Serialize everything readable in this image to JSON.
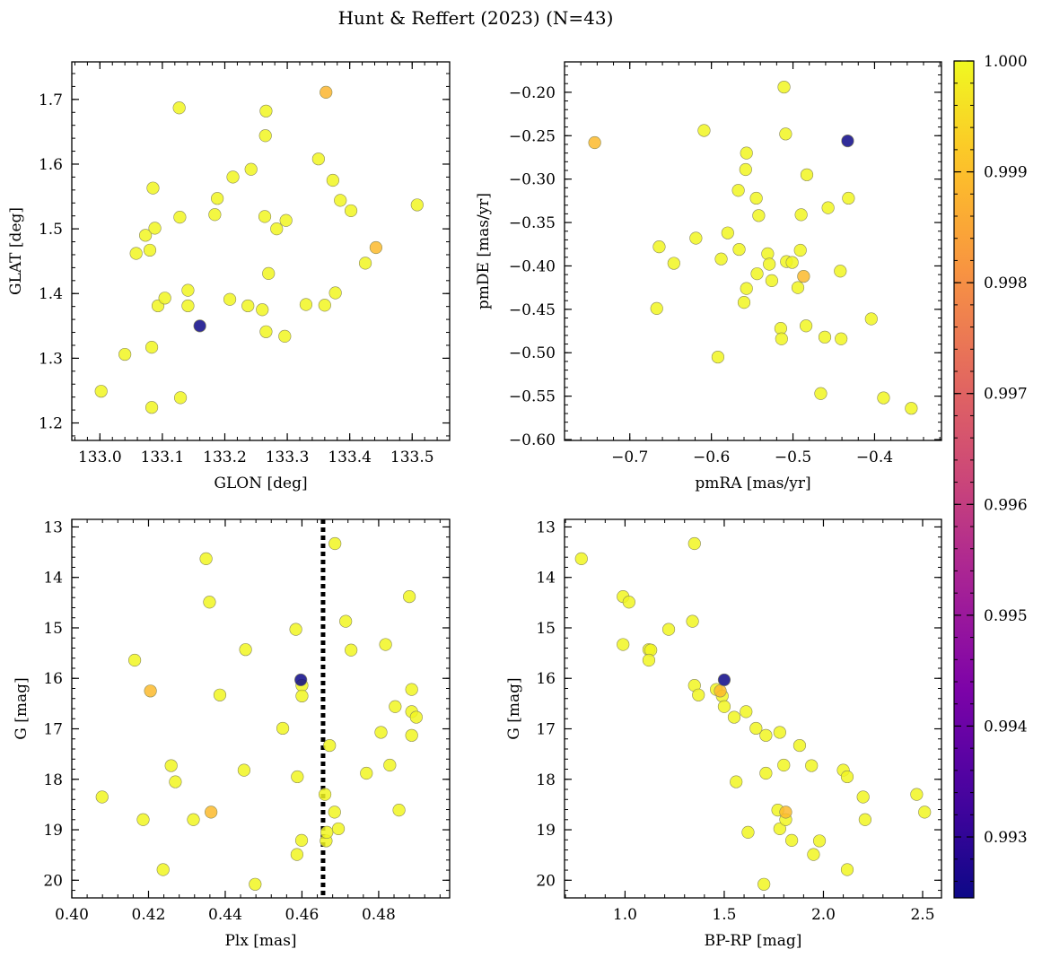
{
  "title": "Hunt & Reffert (2023) (N=43)",
  "colorbar": {
    "min": 0.99245,
    "max": 1.0,
    "ticks": [
      0.993,
      0.994,
      0.995,
      0.996,
      0.997,
      0.998,
      0.999,
      1.0
    ],
    "tick_labels": [
      "0.993",
      "0.994",
      "0.995",
      "0.996",
      "0.997",
      "0.998",
      "0.999",
      "1.000"
    ],
    "colormap": "plasma"
  },
  "chart_data": [
    {
      "type": "scatter",
      "id": "glon-glat",
      "xlabel": "GLON [deg]",
      "ylabel": "GLAT [deg]",
      "xlim": [
        132.955,
        133.56
      ],
      "ylim": [
        1.173,
        1.758
      ],
      "y_inverted": false,
      "xticks": [
        133.0,
        133.1,
        133.2,
        133.3,
        133.4,
        133.5
      ],
      "xtick_labels": [
        "133.0",
        "133.1",
        "133.2",
        "133.3",
        "133.4",
        "133.5"
      ],
      "yticks": [
        1.2,
        1.3,
        1.4,
        1.5,
        1.6,
        1.7
      ],
      "ytick_labels": [
        "1.2",
        "1.3",
        "1.4",
        "1.5",
        "1.6",
        "1.7"
      ],
      "points": [
        {
          "x": 133.002,
          "y": 1.249,
          "c": 0.99995
        },
        {
          "x": 133.04,
          "y": 1.306,
          "c": 0.99995
        },
        {
          "x": 133.058,
          "y": 1.462,
          "c": 0.99995
        },
        {
          "x": 133.073,
          "y": 1.49,
          "c": 0.99995
        },
        {
          "x": 133.08,
          "y": 1.467,
          "c": 0.99995
        },
        {
          "x": 133.083,
          "y": 1.317,
          "c": 0.99995
        },
        {
          "x": 133.083,
          "y": 1.224,
          "c": 0.99995
        },
        {
          "x": 133.085,
          "y": 1.563,
          "c": 0.99995
        },
        {
          "x": 133.088,
          "y": 1.501,
          "c": 0.99995
        },
        {
          "x": 133.093,
          "y": 1.381,
          "c": 0.99995
        },
        {
          "x": 133.104,
          "y": 1.393,
          "c": 0.99995
        },
        {
          "x": 133.127,
          "y": 1.687,
          "c": 0.99995
        },
        {
          "x": 133.128,
          "y": 1.518,
          "c": 0.99995
        },
        {
          "x": 133.129,
          "y": 1.239,
          "c": 0.99995
        },
        {
          "x": 133.141,
          "y": 1.405,
          "c": 0.99995
        },
        {
          "x": 133.141,
          "y": 1.381,
          "c": 0.99995
        },
        {
          "x": 133.16,
          "y": 1.35,
          "c": 0.99245
        },
        {
          "x": 133.184,
          "y": 1.522,
          "c": 0.99995
        },
        {
          "x": 133.188,
          "y": 1.547,
          "c": 0.99995
        },
        {
          "x": 133.208,
          "y": 1.391,
          "c": 0.99995
        },
        {
          "x": 133.213,
          "y": 1.58,
          "c": 0.99995
        },
        {
          "x": 133.237,
          "y": 1.381,
          "c": 0.99995
        },
        {
          "x": 133.242,
          "y": 1.592,
          "c": 0.99995
        },
        {
          "x": 133.26,
          "y": 1.375,
          "c": 0.99995
        },
        {
          "x": 133.264,
          "y": 1.519,
          "c": 0.99995
        },
        {
          "x": 133.265,
          "y": 1.644,
          "c": 0.99995
        },
        {
          "x": 133.266,
          "y": 1.682,
          "c": 0.99995
        },
        {
          "x": 133.266,
          "y": 1.341,
          "c": 0.99995
        },
        {
          "x": 133.27,
          "y": 1.431,
          "c": 0.99995
        },
        {
          "x": 133.283,
          "y": 1.5,
          "c": 0.99995
        },
        {
          "x": 133.296,
          "y": 1.334,
          "c": 0.99995
        },
        {
          "x": 133.298,
          "y": 1.513,
          "c": 0.99995
        },
        {
          "x": 133.33,
          "y": 1.383,
          "c": 0.99995
        },
        {
          "x": 133.35,
          "y": 1.608,
          "c": 0.99995
        },
        {
          "x": 133.36,
          "y": 1.382,
          "c": 0.99995
        },
        {
          "x": 133.362,
          "y": 1.711,
          "c": 0.9988
        },
        {
          "x": 133.373,
          "y": 1.575,
          "c": 0.99995
        },
        {
          "x": 133.377,
          "y": 1.401,
          "c": 0.99995
        },
        {
          "x": 133.385,
          "y": 1.544,
          "c": 0.99995
        },
        {
          "x": 133.402,
          "y": 1.528,
          "c": 0.99995
        },
        {
          "x": 133.425,
          "y": 1.447,
          "c": 0.99995
        },
        {
          "x": 133.442,
          "y": 1.471,
          "c": 0.9989
        },
        {
          "x": 133.508,
          "y": 1.537,
          "c": 0.99995
        }
      ]
    },
    {
      "type": "scatter",
      "id": "pmra-pmde",
      "xlabel": "pmRA [mas/yr]",
      "ylabel": "pmDE [mas/yr]",
      "xlim": [
        -0.78,
        -0.318
      ],
      "ylim": [
        -0.601,
        -0.165
      ],
      "y_inverted": false,
      "xticks": [
        -0.7,
        -0.6,
        -0.5,
        -0.4
      ],
      "xtick_labels": [
        "−0.7",
        "−0.6",
        "−0.5",
        "−0.4"
      ],
      "yticks": [
        -0.6,
        -0.55,
        -0.5,
        -0.45,
        -0.4,
        -0.35,
        -0.3,
        -0.25,
        -0.2
      ],
      "ytick_labels": [
        "−0.60",
        "−0.55",
        "−0.50",
        "−0.45",
        "−0.40",
        "−0.35",
        "−0.30",
        "−0.25",
        "−0.20"
      ],
      "points": [
        {
          "x": -0.743,
          "y": -0.258,
          "c": 0.9989
        },
        {
          "x": -0.667,
          "y": -0.449,
          "c": 0.99995
        },
        {
          "x": -0.664,
          "y": -0.378,
          "c": 0.99995
        },
        {
          "x": -0.646,
          "y": -0.397,
          "c": 0.99995
        },
        {
          "x": -0.619,
          "y": -0.368,
          "c": 0.99995
        },
        {
          "x": -0.609,
          "y": -0.244,
          "c": 0.99995
        },
        {
          "x": -0.592,
          "y": -0.505,
          "c": 0.99995
        },
        {
          "x": -0.588,
          "y": -0.392,
          "c": 0.99995
        },
        {
          "x": -0.58,
          "y": -0.362,
          "c": 0.99995
        },
        {
          "x": -0.567,
          "y": -0.313,
          "c": 0.99995
        },
        {
          "x": -0.566,
          "y": -0.381,
          "c": 0.99995
        },
        {
          "x": -0.56,
          "y": -0.442,
          "c": 0.99995
        },
        {
          "x": -0.558,
          "y": -0.289,
          "c": 0.99995
        },
        {
          "x": -0.557,
          "y": -0.27,
          "c": 0.99995
        },
        {
          "x": -0.557,
          "y": -0.426,
          "c": 0.99995
        },
        {
          "x": -0.545,
          "y": -0.322,
          "c": 0.99995
        },
        {
          "x": -0.544,
          "y": -0.409,
          "c": 0.99995
        },
        {
          "x": -0.542,
          "y": -0.342,
          "c": 0.99995
        },
        {
          "x": -0.531,
          "y": -0.386,
          "c": 0.99995
        },
        {
          "x": -0.529,
          "y": -0.398,
          "c": 0.99995
        },
        {
          "x": -0.526,
          "y": -0.417,
          "c": 0.99995
        },
        {
          "x": -0.515,
          "y": -0.472,
          "c": 0.99995
        },
        {
          "x": -0.514,
          "y": -0.484,
          "c": 0.99995
        },
        {
          "x": -0.511,
          "y": -0.194,
          "c": 0.99995
        },
        {
          "x": -0.509,
          "y": -0.248,
          "c": 0.99995
        },
        {
          "x": -0.508,
          "y": -0.395,
          "c": 0.99995
        },
        {
          "x": -0.501,
          "y": -0.396,
          "c": 0.99995
        },
        {
          "x": -0.494,
          "y": -0.425,
          "c": 0.99995
        },
        {
          "x": -0.491,
          "y": -0.382,
          "c": 0.99995
        },
        {
          "x": -0.49,
          "y": -0.341,
          "c": 0.99995
        },
        {
          "x": -0.487,
          "y": -0.412,
          "c": 0.9989
        },
        {
          "x": -0.484,
          "y": -0.469,
          "c": 0.99995
        },
        {
          "x": -0.483,
          "y": -0.295,
          "c": 0.99995
        },
        {
          "x": -0.466,
          "y": -0.547,
          "c": 0.99995
        },
        {
          "x": -0.461,
          "y": -0.482,
          "c": 0.99995
        },
        {
          "x": -0.457,
          "y": -0.333,
          "c": 0.99995
        },
        {
          "x": -0.442,
          "y": -0.406,
          "c": 0.99995
        },
        {
          "x": -0.441,
          "y": -0.484,
          "c": 0.99995
        },
        {
          "x": -0.433,
          "y": -0.256,
          "c": 0.99245
        },
        {
          "x": -0.432,
          "y": -0.322,
          "c": 0.99995
        },
        {
          "x": -0.404,
          "y": -0.461,
          "c": 0.99995
        },
        {
          "x": -0.389,
          "y": -0.552,
          "c": 0.99995
        },
        {
          "x": -0.355,
          "y": -0.564,
          "c": 0.99995
        }
      ]
    },
    {
      "type": "scatter",
      "id": "plx-g",
      "xlabel": "Plx [mas]",
      "ylabel": "G [mag]",
      "xlim": [
        0.4,
        0.4985
      ],
      "ylim": [
        12.85,
        20.35
      ],
      "y_inverted": true,
      "vline": 0.4655,
      "xticks": [
        0.4,
        0.42,
        0.44,
        0.46,
        0.48
      ],
      "xtick_labels": [
        "0.40",
        "0.42",
        "0.44",
        "0.46",
        "0.48"
      ],
      "yticks": [
        13,
        14,
        15,
        16,
        17,
        18,
        19,
        20
      ],
      "ytick_labels": [
        "13",
        "14",
        "15",
        "16",
        "17",
        "18",
        "19",
        "20"
      ],
      "points": [
        {
          "x": 0.4079,
          "y": 18.35,
          "c": 0.99995
        },
        {
          "x": 0.4164,
          "y": 15.64,
          "c": 0.99995
        },
        {
          "x": 0.4186,
          "y": 18.8,
          "c": 0.99995
        },
        {
          "x": 0.4205,
          "y": 16.25,
          "c": 0.9989
        },
        {
          "x": 0.4238,
          "y": 19.79,
          "c": 0.99995
        },
        {
          "x": 0.4259,
          "y": 17.73,
          "c": 0.99995
        },
        {
          "x": 0.427,
          "y": 18.05,
          "c": 0.99995
        },
        {
          "x": 0.4317,
          "y": 18.8,
          "c": 0.99995
        },
        {
          "x": 0.435,
          "y": 13.63,
          "c": 0.99995
        },
        {
          "x": 0.4359,
          "y": 14.49,
          "c": 0.99995
        },
        {
          "x": 0.4363,
          "y": 18.65,
          "c": 0.9989
        },
        {
          "x": 0.4386,
          "y": 16.33,
          "c": 0.99995
        },
        {
          "x": 0.4449,
          "y": 17.82,
          "c": 0.99995
        },
        {
          "x": 0.4453,
          "y": 15.43,
          "c": 0.99995
        },
        {
          "x": 0.4478,
          "y": 20.08,
          "c": 0.99995
        },
        {
          "x": 0.455,
          "y": 16.99,
          "c": 0.99995
        },
        {
          "x": 0.4584,
          "y": 15.03,
          "c": 0.99995
        },
        {
          "x": 0.4587,
          "y": 19.49,
          "c": 0.99995
        },
        {
          "x": 0.4588,
          "y": 17.95,
          "c": 0.99995
        },
        {
          "x": 0.4597,
          "y": 16.03,
          "c": 0.99245
        },
        {
          "x": 0.4599,
          "y": 19.21,
          "c": 0.99995
        },
        {
          "x": 0.46,
          "y": 16.14,
          "c": 0.99995
        },
        {
          "x": 0.46,
          "y": 16.35,
          "c": 0.99995
        },
        {
          "x": 0.466,
          "y": 18.3,
          "c": 0.99995
        },
        {
          "x": 0.4663,
          "y": 19.22,
          "c": 0.99995
        },
        {
          "x": 0.4665,
          "y": 19.05,
          "c": 0.99995
        },
        {
          "x": 0.4672,
          "y": 17.33,
          "c": 0.99995
        },
        {
          "x": 0.4685,
          "y": 18.65,
          "c": 0.99995
        },
        {
          "x": 0.4686,
          "y": 13.33,
          "c": 0.99995
        },
        {
          "x": 0.4695,
          "y": 18.98,
          "c": 0.99995
        },
        {
          "x": 0.4714,
          "y": 14.87,
          "c": 0.99995
        },
        {
          "x": 0.4728,
          "y": 15.44,
          "c": 0.99995
        },
        {
          "x": 0.4768,
          "y": 17.88,
          "c": 0.99995
        },
        {
          "x": 0.4806,
          "y": 17.07,
          "c": 0.99995
        },
        {
          "x": 0.4818,
          "y": 15.33,
          "c": 0.99995
        },
        {
          "x": 0.4829,
          "y": 17.72,
          "c": 0.99995
        },
        {
          "x": 0.4843,
          "y": 16.56,
          "c": 0.99995
        },
        {
          "x": 0.4853,
          "y": 18.61,
          "c": 0.99995
        },
        {
          "x": 0.488,
          "y": 14.38,
          "c": 0.99995
        },
        {
          "x": 0.4886,
          "y": 16.22,
          "c": 0.99995
        },
        {
          "x": 0.4886,
          "y": 16.66,
          "c": 0.99995
        },
        {
          "x": 0.4886,
          "y": 17.13,
          "c": 0.99995
        },
        {
          "x": 0.4898,
          "y": 16.77,
          "c": 0.99995
        }
      ]
    },
    {
      "type": "scatter",
      "id": "bprp-g",
      "xlabel": "BP-RP [mag]",
      "ylabel": "G [mag]",
      "xlim": [
        0.695,
        2.595
      ],
      "ylim": [
        12.85,
        20.35
      ],
      "y_inverted": true,
      "xticks": [
        1.0,
        1.5,
        2.0,
        2.5
      ],
      "xtick_labels": [
        "1.0",
        "1.5",
        "2.0",
        "2.5"
      ],
      "yticks": [
        13,
        14,
        15,
        16,
        17,
        18,
        19,
        20
      ],
      "ytick_labels": [
        "13",
        "14",
        "15",
        "16",
        "17",
        "18",
        "19",
        "20"
      ],
      "points": [
        {
          "x": 0.78,
          "y": 13.63,
          "c": 0.99995
        },
        {
          "x": 0.99,
          "y": 15.33,
          "c": 0.99995
        },
        {
          "x": 0.99,
          "y": 14.38,
          "c": 0.99995
        },
        {
          "x": 1.02,
          "y": 14.49,
          "c": 0.99995
        },
        {
          "x": 1.12,
          "y": 15.43,
          "c": 0.99995
        },
        {
          "x": 1.13,
          "y": 15.44,
          "c": 0.99995
        },
        {
          "x": 1.12,
          "y": 15.64,
          "c": 0.99995
        },
        {
          "x": 1.22,
          "y": 15.03,
          "c": 0.99995
        },
        {
          "x": 1.34,
          "y": 14.87,
          "c": 0.99995
        },
        {
          "x": 1.35,
          "y": 13.33,
          "c": 0.99995
        },
        {
          "x": 1.35,
          "y": 16.14,
          "c": 0.99995
        },
        {
          "x": 1.37,
          "y": 16.33,
          "c": 0.99995
        },
        {
          "x": 1.46,
          "y": 16.22,
          "c": 0.99995
        },
        {
          "x": 1.48,
          "y": 16.25,
          "c": 0.9989
        },
        {
          "x": 1.49,
          "y": 16.35,
          "c": 0.99995
        },
        {
          "x": 1.5,
          "y": 16.03,
          "c": 0.99245
        },
        {
          "x": 1.5,
          "y": 16.56,
          "c": 0.99995
        },
        {
          "x": 1.55,
          "y": 16.77,
          "c": 0.99995
        },
        {
          "x": 1.56,
          "y": 18.05,
          "c": 0.99995
        },
        {
          "x": 1.61,
          "y": 16.66,
          "c": 0.99995
        },
        {
          "x": 1.62,
          "y": 19.05,
          "c": 0.99995
        },
        {
          "x": 1.66,
          "y": 16.99,
          "c": 0.99995
        },
        {
          "x": 1.7,
          "y": 20.08,
          "c": 0.99995
        },
        {
          "x": 1.71,
          "y": 17.13,
          "c": 0.99995
        },
        {
          "x": 1.71,
          "y": 17.88,
          "c": 0.99995
        },
        {
          "x": 1.77,
          "y": 18.61,
          "c": 0.99995
        },
        {
          "x": 1.78,
          "y": 17.07,
          "c": 0.99995
        },
        {
          "x": 1.78,
          "y": 18.98,
          "c": 0.99995
        },
        {
          "x": 1.8,
          "y": 17.72,
          "c": 0.99995
        },
        {
          "x": 1.81,
          "y": 18.65,
          "c": 0.9989
        },
        {
          "x": 1.81,
          "y": 18.8,
          "c": 0.99995
        },
        {
          "x": 1.84,
          "y": 19.21,
          "c": 0.99995
        },
        {
          "x": 1.88,
          "y": 17.33,
          "c": 0.99995
        },
        {
          "x": 1.94,
          "y": 17.73,
          "c": 0.99995
        },
        {
          "x": 1.95,
          "y": 19.49,
          "c": 0.99995
        },
        {
          "x": 1.98,
          "y": 19.22,
          "c": 0.99995
        },
        {
          "x": 2.1,
          "y": 17.82,
          "c": 0.99995
        },
        {
          "x": 2.12,
          "y": 17.95,
          "c": 0.99995
        },
        {
          "x": 2.12,
          "y": 19.79,
          "c": 0.99995
        },
        {
          "x": 2.2,
          "y": 18.35,
          "c": 0.99995
        },
        {
          "x": 2.21,
          "y": 18.8,
          "c": 0.99995
        },
        {
          "x": 2.47,
          "y": 18.3,
          "c": 0.99995
        },
        {
          "x": 2.51,
          "y": 18.65,
          "c": 0.99995
        }
      ]
    }
  ]
}
